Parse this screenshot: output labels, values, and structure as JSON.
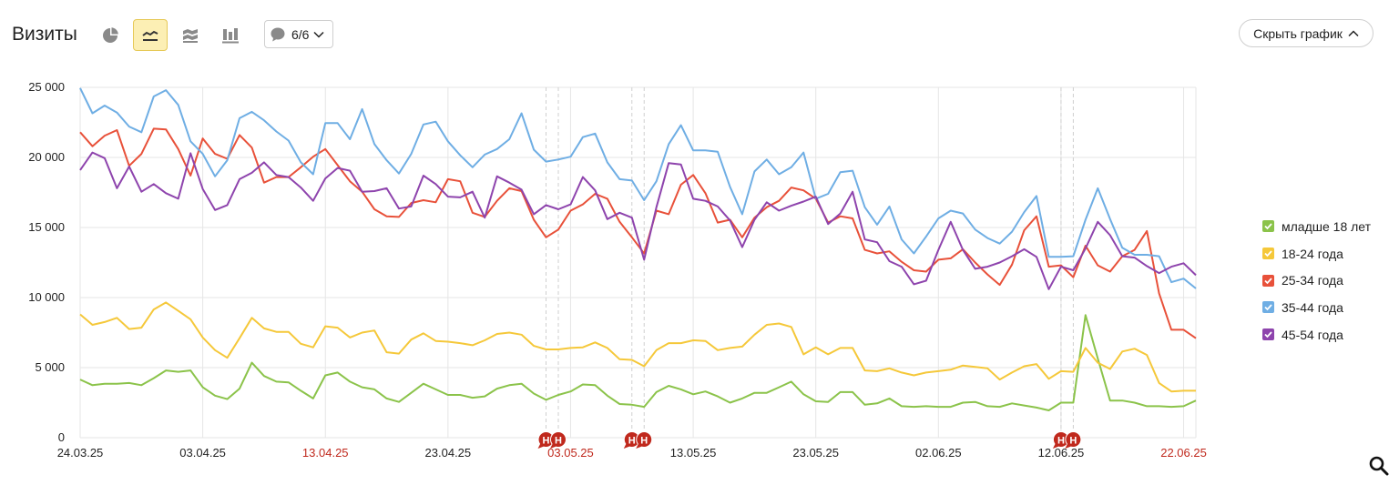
{
  "header": {
    "title": "Визиты",
    "notes_count": "6/6",
    "hide_chart_label": "Скрыть график"
  },
  "colors": {
    "accent": "#fcefb4",
    "holiday_label": "#c0291d",
    "marker": "#c0291d"
  },
  "chart_data": {
    "type": "line",
    "title": "",
    "xlabel": "",
    "ylabel": "",
    "ylim": [
      0,
      25000
    ],
    "yticks": [
      0,
      5000,
      10000,
      15000,
      20000,
      25000
    ],
    "ytick_labels": [
      "0",
      "5 000",
      "10 000",
      "15 000",
      "20 000",
      "25 000"
    ],
    "x_start": "24.03.25",
    "x_end": "23.06.25",
    "x_tick_labels": [
      "24.03.25",
      "03.04.25",
      "13.04.25",
      "23.04.25",
      "03.05.25",
      "13.05.25",
      "23.05.25",
      "02.06.25",
      "12.06.25",
      "22.06.25"
    ],
    "holiday_tick_labels": [
      "13.04.25",
      "03.05.25",
      "22.06.25"
    ],
    "grid": true,
    "legend_position": "right",
    "annotations": [
      {
        "date": "01.05.25",
        "label": "Н"
      },
      {
        "date": "02.05.25",
        "label": "Н"
      },
      {
        "date": "08.05.25",
        "label": "Н"
      },
      {
        "date": "09.05.25",
        "label": "Н"
      },
      {
        "date": "12.06.25",
        "label": "Н"
      },
      {
        "date": "13.06.25",
        "label": "Н"
      }
    ],
    "series": [
      {
        "name": "младше 18 лет",
        "color": "#8bc34a",
        "values": [
          4150,
          3750,
          3850,
          3850,
          3900,
          3750,
          4250,
          4800,
          4700,
          4800,
          3600,
          3000,
          2750,
          3500,
          5350,
          4400,
          4000,
          3950,
          3350,
          2800,
          4450,
          4650,
          4000,
          3600,
          3450,
          2800,
          2550,
          3200,
          3850,
          3450,
          3050,
          3050,
          2850,
          2950,
          3500,
          3750,
          3850,
          3150,
          2700,
          3050,
          3300,
          3800,
          3750,
          3000,
          2400,
          2350,
          2200,
          3250,
          3700,
          3450,
          3100,
          3300,
          2950,
          2500,
          2800,
          3200,
          3200,
          3600,
          4000,
          3100,
          2600,
          2550,
          3250,
          3250,
          2350,
          2450,
          2800,
          2250,
          2200,
          2250,
          2200,
          2200,
          2500,
          2550,
          2250,
          2200,
          2450,
          2300,
          2150,
          1950,
          2500,
          2500,
          8750,
          5650,
          2650,
          2650,
          2500,
          2250,
          2250,
          2200,
          2250,
          2650
        ]
      },
      {
        "name": "18-24 года",
        "color": "#f5c83a",
        "values": [
          8800,
          8050,
          8250,
          8550,
          7750,
          7850,
          9150,
          9650,
          9050,
          8450,
          7150,
          6250,
          5700,
          7100,
          8550,
          7800,
          7550,
          7550,
          6700,
          6450,
          7950,
          7850,
          7150,
          7500,
          7650,
          6100,
          6000,
          7000,
          7450,
          6900,
          6850,
          6750,
          6600,
          6950,
          7400,
          7500,
          7350,
          6550,
          6300,
          6300,
          6400,
          6450,
          6800,
          6400,
          5600,
          5550,
          5100,
          6250,
          6750,
          6750,
          6950,
          6900,
          6250,
          6400,
          6500,
          7350,
          8050,
          8150,
          7900,
          5950,
          6450,
          5950,
          6400,
          6400,
          4800,
          4750,
          4950,
          4650,
          4450,
          4650,
          4750,
          4850,
          5150,
          5050,
          4950,
          4150,
          4650,
          5100,
          5250,
          4200,
          4750,
          4700,
          6400,
          5350,
          4900,
          6150,
          6350,
          5900,
          3900,
          3300,
          3350,
          3350
        ]
      },
      {
        "name": "25-34 года",
        "color": "#e8513a",
        "values": [
          21800,
          20800,
          21550,
          21950,
          19400,
          20250,
          22050,
          22000,
          20600,
          18700,
          21350,
          20250,
          19900,
          21600,
          20700,
          18200,
          18600,
          18600,
          19300,
          20050,
          20600,
          19450,
          18300,
          17550,
          16300,
          15800,
          15750,
          16750,
          16950,
          16800,
          18450,
          18300,
          16050,
          15750,
          16900,
          17800,
          17600,
          15550,
          14300,
          14850,
          16200,
          16650,
          17400,
          17050,
          15400,
          14300,
          13150,
          16200,
          15950,
          18050,
          18750,
          17450,
          15350,
          15550,
          14300,
          15700,
          16450,
          16900,
          17850,
          17650,
          17050,
          15350,
          15800,
          15650,
          13400,
          13150,
          13300,
          12550,
          11950,
          11850,
          12700,
          12800,
          13450,
          12500,
          11650,
          10900,
          12350,
          14800,
          15800,
          12200,
          12300,
          11450,
          13700,
          12300,
          11850,
          12950,
          13400,
          14750,
          10300,
          7700,
          7700,
          7100
        ]
      },
      {
        "name": "35-44 года",
        "color": "#6faee4",
        "values": [
          24950,
          23150,
          23700,
          23200,
          22200,
          21800,
          24350,
          24800,
          23750,
          21150,
          20250,
          18650,
          19800,
          22800,
          23250,
          22650,
          21850,
          21200,
          19650,
          18800,
          22450,
          22450,
          21300,
          23450,
          20950,
          19800,
          18850,
          20250,
          22350,
          22550,
          21150,
          20150,
          19300,
          20200,
          20600,
          21300,
          23150,
          20550,
          19700,
          19850,
          20050,
          21450,
          21700,
          19650,
          18450,
          18350,
          16950,
          18300,
          20950,
          22300,
          20500,
          20500,
          20400,
          17900,
          15950,
          19000,
          19850,
          18800,
          19300,
          20350,
          17050,
          17400,
          18950,
          19050,
          16450,
          15200,
          16500,
          14150,
          13150,
          14350,
          15650,
          16200,
          16000,
          14850,
          14250,
          13850,
          14700,
          16100,
          17250,
          12900,
          12900,
          12950,
          15550,
          17800,
          15600,
          13550,
          13050,
          13050,
          12950,
          11100,
          11350,
          10650
        ]
      },
      {
        "name": "45-54 года",
        "color": "#8e44ad",
        "values": [
          19100,
          20350,
          19950,
          17800,
          19350,
          17550,
          18100,
          17450,
          17050,
          20300,
          17750,
          16250,
          16600,
          18450,
          18900,
          19650,
          18750,
          18600,
          17850,
          16900,
          18500,
          19250,
          19050,
          17550,
          17600,
          17800,
          16350,
          16500,
          18700,
          18100,
          17200,
          17150,
          17550,
          15700,
          18650,
          18200,
          17700,
          15950,
          16600,
          16300,
          16650,
          18600,
          17650,
          15600,
          16050,
          15700,
          12700,
          16450,
          19600,
          19500,
          17050,
          16900,
          16500,
          15500,
          13600,
          15550,
          16800,
          16200,
          16550,
          16850,
          17200,
          15250,
          16000,
          17550,
          14150,
          13950,
          12600,
          12200,
          10950,
          11200,
          13400,
          15400,
          13400,
          12050,
          12200,
          12500,
          12950,
          13450,
          12900,
          10600,
          12200,
          11950,
          13500,
          15400,
          14450,
          12950,
          12850,
          12250,
          11750,
          12200,
          12450,
          11600
        ]
      }
    ]
  }
}
